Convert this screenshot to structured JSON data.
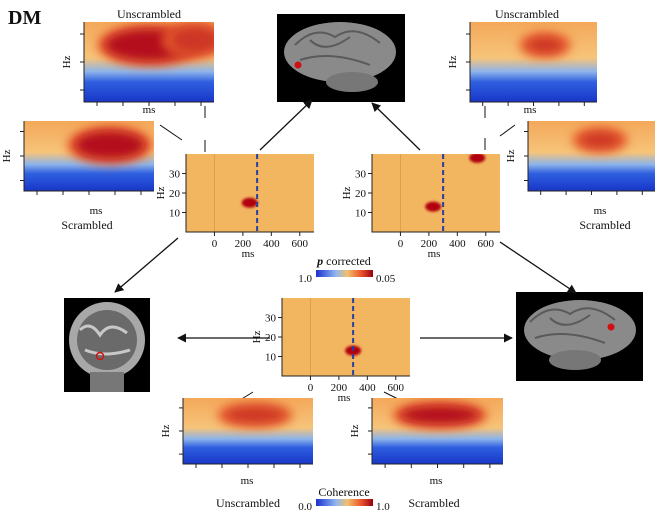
{
  "figure_label": "DM",
  "p_maps": {
    "x_label": "ms",
    "y_label": "Hz",
    "xlim": [
      -200,
      700
    ],
    "ylim": [
      0,
      40
    ],
    "xticks": [
      0,
      200,
      400,
      600
    ],
    "yticks": [
      10,
      20,
      30
    ]
  },
  "p_colorbar": {
    "symbol": "p",
    "title": "corrected",
    "min_label": "1.0",
    "max_label": "0.05"
  },
  "coherence_colorbar": {
    "title": "Coherence",
    "min_label": "0.0",
    "max_label": "1.0"
  },
  "spectrogram_axes": {
    "x_label": "ms",
    "y_label": "Hz"
  },
  "spectrograms": [
    {
      "condition": "Unscrambled"
    },
    {
      "condition": "Scrambled"
    },
    {
      "condition": "Unscrambled"
    },
    {
      "condition": "Scrambled"
    },
    {
      "condition": "Unscrambled"
    },
    {
      "condition": "Scrambled"
    }
  ]
}
